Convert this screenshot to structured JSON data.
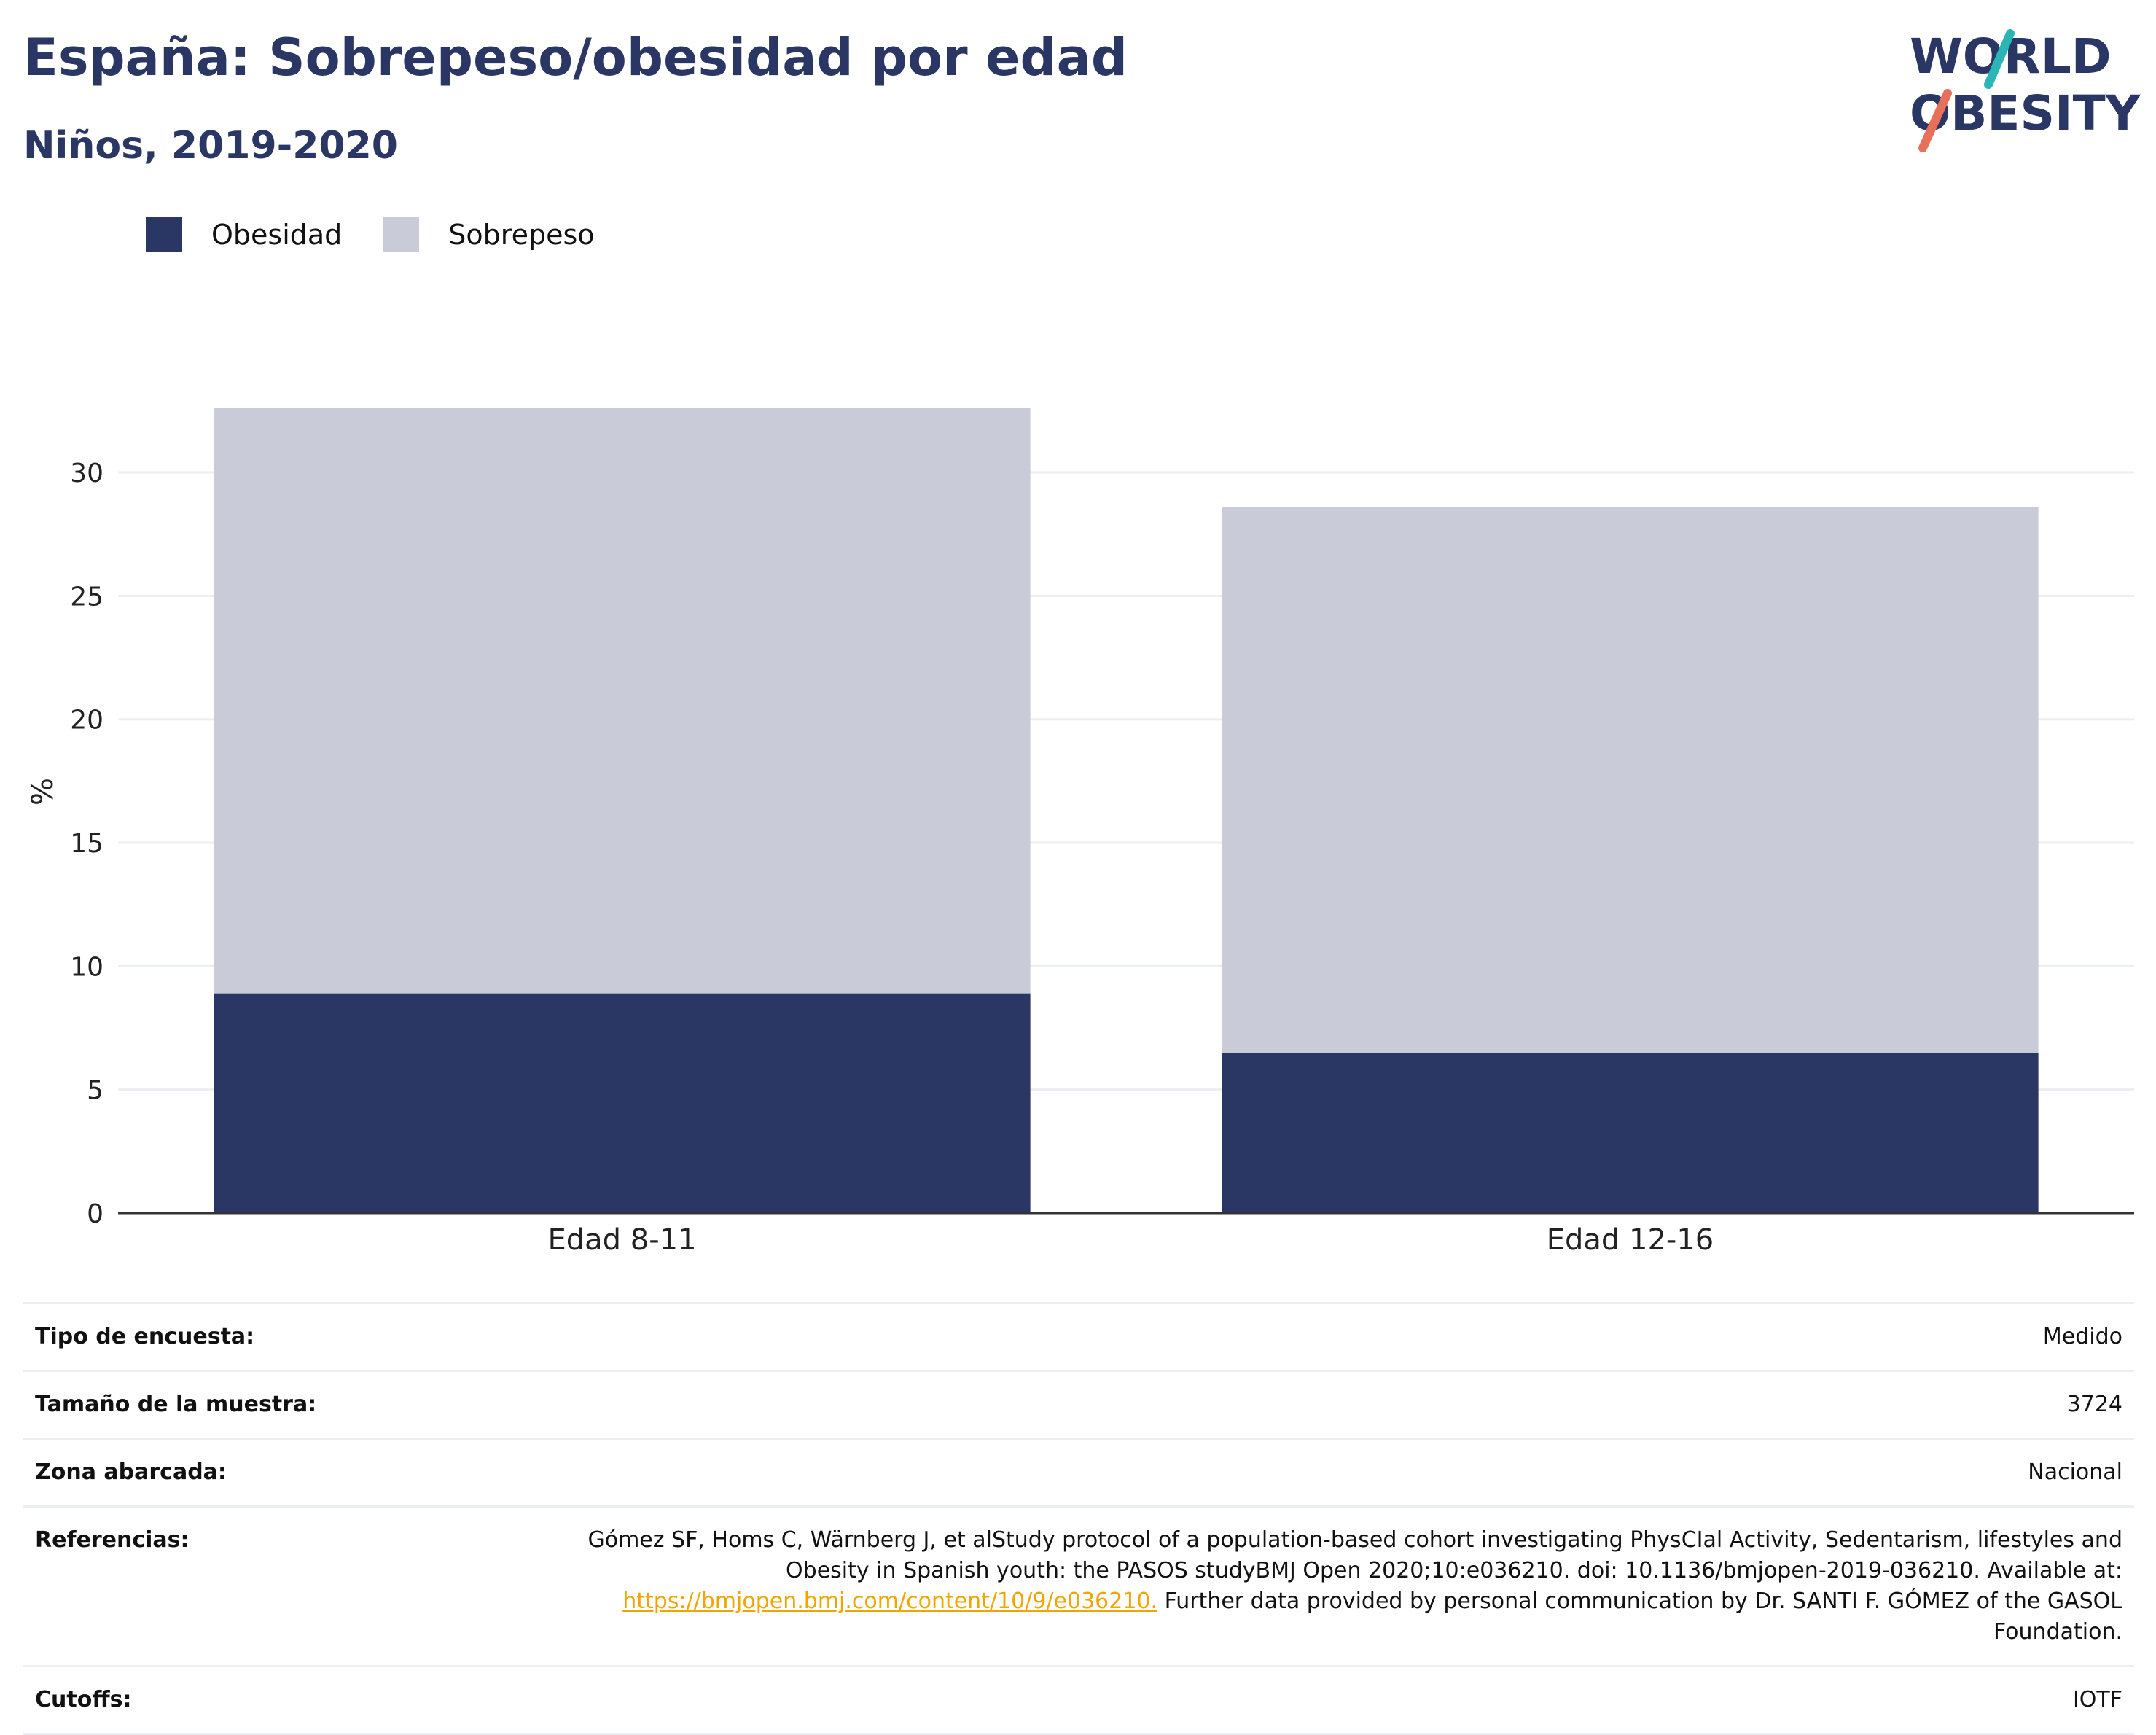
{
  "header": {
    "title": "España: Sobrepeso/obesidad por edad",
    "subtitle": "Niños, 2019-2020",
    "logo_line1": "WORLD",
    "logo_line2": "OBESITY"
  },
  "colors": {
    "obesidad": "#2a3663",
    "sobrepeso": "#c9ccd8",
    "title": "#2a3663",
    "link": "#f0a500",
    "logo_teal": "#2bb5b5",
    "logo_coral": "#e8705a"
  },
  "chart_data": {
    "type": "bar",
    "stacked": true,
    "categories": [
      "Edad 8-11",
      "Edad 12-16"
    ],
    "series": [
      {
        "name": "Obesidad",
        "values": [
          8.9,
          6.5
        ]
      },
      {
        "name": "Sobrepeso",
        "values": [
          23.7,
          22.1
        ]
      }
    ],
    "ylabel": "%",
    "ylim": [
      0,
      32.6
    ],
    "yticks": [
      0,
      5,
      10,
      15,
      20,
      25,
      30
    ],
    "grid": true,
    "legend": "top-left"
  },
  "info": {
    "rows": [
      {
        "key": "Tipo de encuesta:",
        "value": "Medido"
      },
      {
        "key": "Tamaño de la muestra:",
        "value": "3724"
      },
      {
        "key": "Zona abarcada:",
        "value": "Nacional"
      }
    ],
    "references": {
      "key": "Referencias:",
      "text_before": "Gómez SF, Homs C, Wärnberg J, et alStudy protocol of a population-based cohort investigating PhysCIal Activity, Sedentarism, lifestyles and Obesity in Spanish youth: the PASOS studyBMJ Open 2020;10:e036210. doi: 10.1136/bmjopen-2019-036210. Available at: ",
      "link": "https://bmjopen.bmj.com/content/10/9/e036210.",
      "text_after": " Further data provided by personal communication by Dr. SANTI F. GÓMEZ of the GASOL Foundation."
    },
    "cutoffs": {
      "key": "Cutoffs:",
      "value": "IOTF"
    }
  }
}
